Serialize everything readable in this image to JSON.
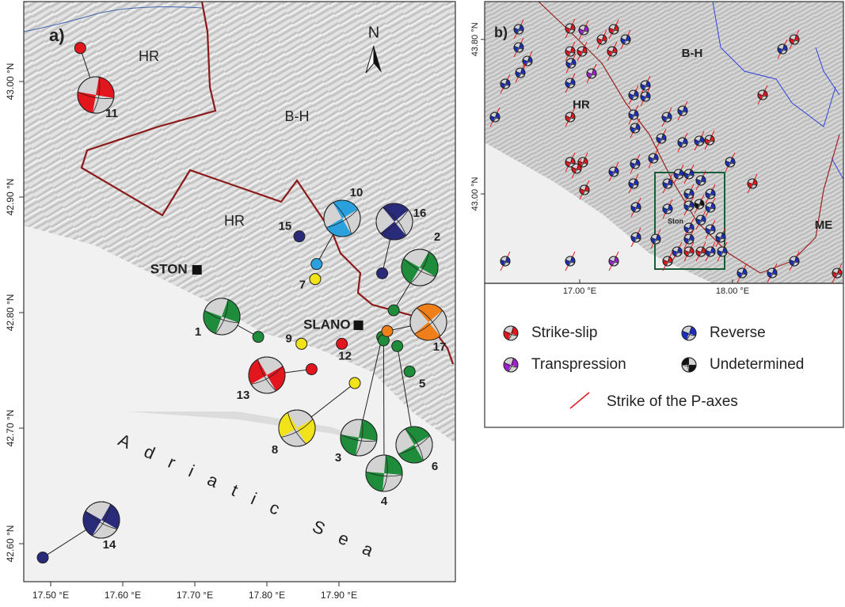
{
  "panel_a": {
    "label": "a)",
    "north": "N",
    "regions": [
      "HR",
      "B-H",
      "HR"
    ],
    "towns": [
      {
        "name": "STON",
        "lon": 17.703,
        "lat": 42.837
      },
      {
        "name": "SLANO",
        "lon": 17.927,
        "lat": 42.789
      }
    ],
    "sea": "Adriatic Sea",
    "lat_ticks": [
      {
        "value": 43.0,
        "label": "43.00 °N"
      },
      {
        "value": 42.9,
        "label": "42.90 °N"
      },
      {
        "value": 42.8,
        "label": "42.80 °N"
      },
      {
        "value": 42.7,
        "label": "42.70 °N"
      },
      {
        "value": 42.6,
        "label": "42.60 °N"
      }
    ],
    "lon_ticks": [
      {
        "value": 17.5,
        "label": "17.50 °E"
      },
      {
        "value": 17.6,
        "label": "17.60 °E"
      },
      {
        "value": 17.7,
        "label": "17.70 °E"
      },
      {
        "value": 17.8,
        "label": "17.80 °E"
      },
      {
        "value": 17.9,
        "label": "17.90 °E"
      }
    ],
    "events": [
      {
        "id": "1",
        "lon": 17.788,
        "lat": 42.779,
        "color": "#1e8c3a"
      },
      {
        "id": "2",
        "lon": 17.976,
        "lat": 42.802,
        "color": "#1e8c3a"
      },
      {
        "id": "3",
        "lon": 17.96,
        "lat": 42.779,
        "color": "#1e8c3a"
      },
      {
        "id": "4",
        "lon": 17.962,
        "lat": 42.776,
        "color": "#1e8c3a"
      },
      {
        "id": "5",
        "lon": 17.998,
        "lat": 42.749,
        "color": "#1e8c3a"
      },
      {
        "id": "6",
        "lon": 17.981,
        "lat": 42.771,
        "color": "#1e8c3a"
      },
      {
        "id": "7",
        "lon": 17.867,
        "lat": 42.829,
        "color": "#f2e21a"
      },
      {
        "id": "8",
        "lon": 17.922,
        "lat": 42.739,
        "color": "#f2e21a"
      },
      {
        "id": "9",
        "lon": 17.848,
        "lat": 42.773,
        "color": "#f2e21a"
      },
      {
        "id": "10",
        "lon": 17.869,
        "lat": 42.842,
        "color": "#2aa0dc"
      },
      {
        "id": "11",
        "lon": 17.541,
        "lat": 43.029,
        "color": "#e3161d"
      },
      {
        "id": "12",
        "lon": 17.904,
        "lat": 42.773,
        "color": "#e3161d"
      },
      {
        "id": "13",
        "lon": 17.862,
        "lat": 42.751,
        "color": "#e3161d"
      },
      {
        "id": "14",
        "lon": 17.489,
        "lat": 42.588,
        "color": "#2a2a7a"
      },
      {
        "id": "15",
        "lon": 17.845,
        "lat": 42.866,
        "color": "#2a2a7a"
      },
      {
        "id": "16",
        "lon": 17.96,
        "lat": 42.834,
        "color": "#2a2a7a"
      },
      {
        "id": "17",
        "lon": 17.967,
        "lat": 42.784,
        "color": "#ee7f1a"
      }
    ]
  },
  "panel_b": {
    "label": "b)",
    "regions": [
      "HR",
      "B-H",
      "ME"
    ],
    "town": "Ston",
    "lat_ticks": [
      {
        "value": 43.8,
        "label": "43.80 °N"
      },
      {
        "value": 43.0,
        "label": "43.00 °N"
      }
    ],
    "lon_ticks": [
      {
        "value": 17.0,
        "label": "17.00 °E"
      },
      {
        "value": 18.0,
        "label": "18.00 °E"
      }
    ]
  },
  "legend": [
    {
      "label": "Strike-slip",
      "color": "#e3161d"
    },
    {
      "label": "Reverse",
      "color": "#1a2fc0"
    },
    {
      "label": "Transpression",
      "color": "#a020d0"
    },
    {
      "label": "Undetermined",
      "color": "#111111"
    },
    {
      "label": "Strike of the P-axes",
      "color": "#e3161d"
    }
  ]
}
